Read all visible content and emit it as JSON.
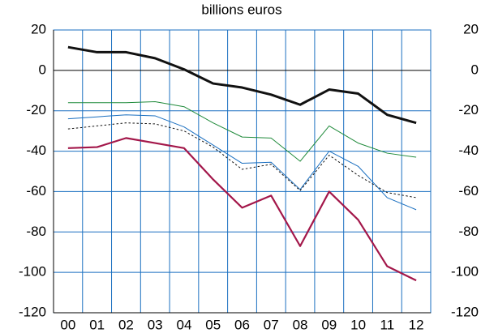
{
  "chart_data": {
    "type": "line",
    "title": "billions euros",
    "categories": [
      "00",
      "01",
      "02",
      "03",
      "04",
      "05",
      "06",
      "07",
      "08",
      "09",
      "10",
      "11",
      "12"
    ],
    "ylim": [
      -120,
      20
    ],
    "yticks": [
      20,
      0,
      -20,
      -40,
      -60,
      -80,
      -100,
      -120
    ],
    "grid": true,
    "right_axis_labels": true,
    "series": [
      {
        "color": "#111111",
        "style": "thick",
        "values": [
          11.5,
          9,
          9,
          6,
          0.5,
          -6.5,
          -8.5,
          -12,
          -17,
          -9.5,
          -11.5,
          -22,
          -26
        ]
      },
      {
        "color": "#1f8a3a",
        "style": "thin",
        "values": [
          -16,
          -16,
          -16,
          -15.5,
          -18,
          -26,
          -33,
          -33.5,
          -45,
          -27.5,
          -36,
          -41,
          -43
        ]
      },
      {
        "color": "#1a6fc0",
        "style": "thin",
        "values": [
          -24,
          -23,
          -22,
          -22.5,
          -28,
          -37,
          -46,
          -45.5,
          -59,
          -40,
          -47.5,
          -63,
          -69
        ]
      },
      {
        "color": "#111111",
        "style": "dotted",
        "values": [
          -29,
          -27.5,
          -26,
          -26.5,
          -30,
          -38,
          -49,
          -46.5,
          -59.5,
          -42,
          -52,
          -60.5,
          -63
        ]
      },
      {
        "color": "#a3174a",
        "style": "medium",
        "values": [
          -38.5,
          -38,
          -33.5,
          -36,
          -38.5,
          -54,
          -68,
          -62,
          -87,
          -60,
          -74,
          -97,
          -104
        ]
      }
    ]
  }
}
